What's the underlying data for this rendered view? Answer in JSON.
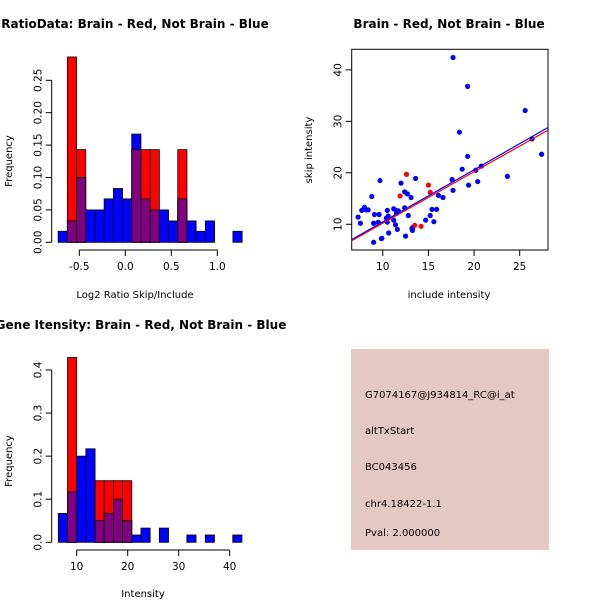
{
  "colors": {
    "brain": "#ff0000",
    "not_brain": "#0000ff",
    "overlap": "#800080",
    "info_bg": "#e5c8c1",
    "pval": "#8b0000"
  },
  "chart_data": [
    {
      "type": "bar",
      "id": "ratio-hist",
      "title": "RatioData: Brain - Red, Not Brain - Blue",
      "xlabel": "Log2 Ratio Skip/Include",
      "ylabel": "Frequency",
      "bin_start": -0.73,
      "bin_width": 0.1,
      "xticks": [
        -0.5,
        0.0,
        0.5,
        1.0
      ],
      "xtick_labels": [
        "-0.5",
        "0.0",
        "0.5",
        "1.0"
      ],
      "yticks": [
        0,
        0.05,
        0.1,
        0.15,
        0.2,
        0.25
      ],
      "ytick_labels": [
        "0.00",
        "0.05",
        "0.10",
        "0.15",
        "0.20",
        "0.25"
      ],
      "series": [
        {
          "name": "Not Brain",
          "color": "blue",
          "values": [
            0.017,
            0.033,
            0.1,
            0.05,
            0.05,
            0.067,
            0.083,
            0.067,
            0.167,
            0.067,
            0.05,
            0.05,
            0.033,
            0.067,
            0.033,
            0.017,
            0.033,
            0,
            0,
            0.017
          ]
        },
        {
          "name": "Brain",
          "color": "red",
          "values": [
            0,
            0.286,
            0.143,
            0,
            0,
            0,
            0,
            0,
            0.143,
            0.143,
            0.143,
            0,
            0,
            0.143,
            0,
            0,
            0,
            0,
            0,
            0
          ]
        }
      ]
    },
    {
      "type": "scatter",
      "id": "intensity-scatter",
      "title": "Brain - Red, Not Brain - Blue",
      "xlabel": "include intensity",
      "ylabel": "skip intensity",
      "xlim": [
        6.6,
        28.1
      ],
      "ylim": [
        5.0,
        44.0
      ],
      "xticks": [
        10,
        15,
        20,
        25
      ],
      "yticks": [
        10,
        20,
        30,
        40
      ],
      "series": [
        {
          "name": "Not Brain",
          "color": "blue",
          "points": [
            [
              7.3,
              11.4
            ],
            [
              7.55,
              10.2
            ],
            [
              7.7,
              12.7
            ],
            [
              8.0,
              13.3
            ],
            [
              8.2,
              12.8
            ],
            [
              8.4,
              12.8
            ],
            [
              8.8,
              15.4
            ],
            [
              9.0,
              6.5
            ],
            [
              9.0,
              10.2
            ],
            [
              9.1,
              11.9
            ],
            [
              9.5,
              10.4
            ],
            [
              9.6,
              11.9
            ],
            [
              9.7,
              18.5
            ],
            [
              9.85,
              7.2
            ],
            [
              9.9,
              7.3
            ],
            [
              10.4,
              11.2
            ],
            [
              10.5,
              12.7
            ],
            [
              10.5,
              10.4
            ],
            [
              10.6,
              11.6
            ],
            [
              10.65,
              8.3
            ],
            [
              11.2,
              10.8
            ],
            [
              11.2,
              13.0
            ],
            [
              11.4,
              9.9
            ],
            [
              11.45,
              12.7
            ],
            [
              11.5,
              12.1
            ],
            [
              11.6,
              9.0
            ],
            [
              11.7,
              12.6
            ],
            [
              12.0,
              18.0
            ],
            [
              12.4,
              16.3
            ],
            [
              12.4,
              13.2
            ],
            [
              12.5,
              7.7
            ],
            [
              12.7,
              15.9
            ],
            [
              12.8,
              11.7
            ],
            [
              13.1,
              15.2
            ],
            [
              13.2,
              9.2
            ],
            [
              13.25,
              8.8
            ],
            [
              13.3,
              9.4
            ],
            [
              13.6,
              18.9
            ],
            [
              14.7,
              10.8
            ],
            [
              15.2,
              11.7
            ],
            [
              15.4,
              12.9
            ],
            [
              15.6,
              10.5
            ],
            [
              15.9,
              12.9
            ],
            [
              16.1,
              15.6
            ],
            [
              16.6,
              15.2
            ],
            [
              17.6,
              18.7
            ],
            [
              17.7,
              42.4
            ],
            [
              17.7,
              16.6
            ],
            [
              18.4,
              27.9
            ],
            [
              18.7,
              20.7
            ],
            [
              19.3,
              36.8
            ],
            [
              19.3,
              23.2
            ],
            [
              19.4,
              17.6
            ],
            [
              20.2,
              20.5
            ],
            [
              20.4,
              18.3
            ],
            [
              20.8,
              21.3
            ],
            [
              23.65,
              19.3
            ],
            [
              25.6,
              32.1
            ],
            [
              26.35,
              26.6
            ],
            [
              27.4,
              23.6
            ]
          ]
        },
        {
          "name": "Brain",
          "color": "red",
          "points": [
            [
              11.9,
              15.5
            ],
            [
              12.6,
              19.7
            ],
            [
              13.5,
              9.8
            ],
            [
              14.2,
              9.6
            ],
            [
              15.0,
              17.6
            ],
            [
              15.2,
              16.2
            ]
          ]
        }
      ],
      "fit_lines": [
        {
          "name": "Not Brain fit",
          "color": "blue",
          "slope": 1.014,
          "intercept": 0.31
        },
        {
          "name": "Brain fit",
          "color": "red",
          "slope": 1.0,
          "intercept": 0.2
        }
      ]
    },
    {
      "type": "bar",
      "id": "intensity-hist",
      "title": "Gene Itensity: Brain - Red, Not Brain - Blue",
      "xlabel": "Intensity",
      "ylabel": "Frequency",
      "bin_start": 6.4,
      "bin_width": 1.8,
      "xticks": [
        10,
        20,
        30,
        40
      ],
      "xtick_labels": [
        "10",
        "20",
        "30",
        "40"
      ],
      "yticks": [
        0,
        0.1,
        0.2,
        0.3,
        0.4
      ],
      "ytick_labels": [
        "0.0",
        "0.1",
        "0.2",
        "0.3",
        "0.4"
      ],
      "series": [
        {
          "name": "Not Brain",
          "color": "blue",
          "values": [
            0.067,
            0.117,
            0.2,
            0.217,
            0.05,
            0.067,
            0.1,
            0.05,
            0.017,
            0.033,
            0,
            0.033,
            0,
            0,
            0.017,
            0,
            0.017,
            0,
            0,
            0.017
          ]
        },
        {
          "name": "Brain",
          "color": "red",
          "values": [
            0,
            0.429,
            0,
            0,
            0.143,
            0.143,
            0.143,
            0.143,
            0,
            0,
            0,
            0,
            0,
            0,
            0,
            0,
            0,
            0,
            0,
            0
          ]
        }
      ]
    }
  ],
  "info": {
    "probe": "G7074167@J934814_RC@i_at",
    "event": "altTxStart",
    "accession": "BC043456",
    "locus": "chr4.18422-1.1",
    "pval": "Pval: 2.000000"
  }
}
